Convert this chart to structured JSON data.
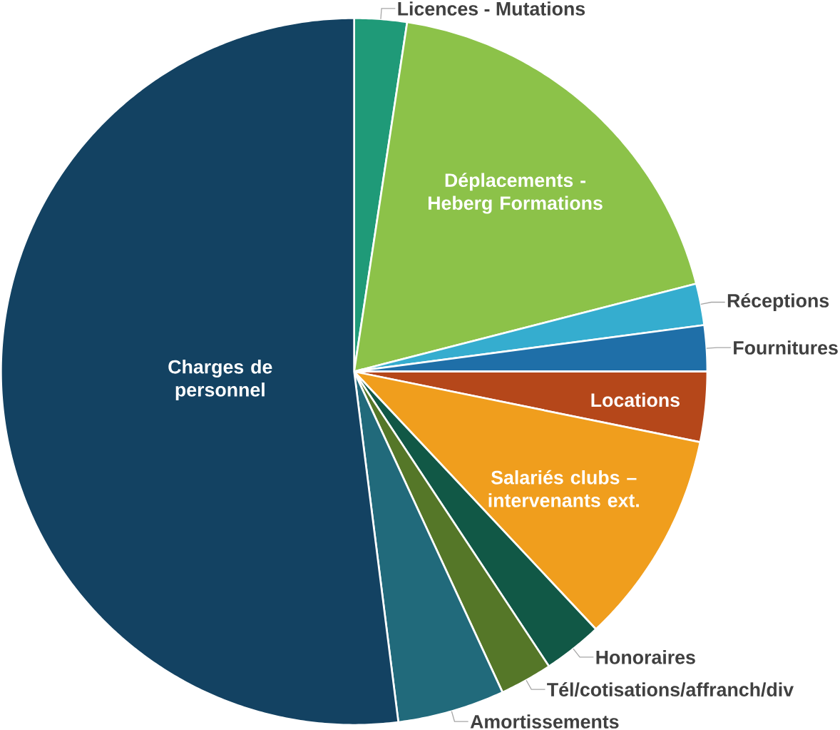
{
  "chart_data": {
    "type": "pie",
    "categories": [
      "Licences - Mutations",
      "Déplacements - Heberg Formations",
      "Réceptions",
      "Fournitures",
      "Locations",
      "Salariés clubs – intervenants ext.",
      "Honoraires",
      "Tél/cotisations/affranch/div",
      "Amortissements",
      "Charges de personnel"
    ],
    "values": [
      2.4,
      18.6,
      1.9,
      2.1,
      3.2,
      9.8,
      2.7,
      2.4,
      4.9,
      52.0
    ],
    "colors": [
      "#1f9a78",
      "#8cc249",
      "#35adcf",
      "#1f6fa8",
      "#b5471a",
      "#f09e1d",
      "#115846",
      "#557728",
      "#216a7b",
      "#134262"
    ]
  }
}
